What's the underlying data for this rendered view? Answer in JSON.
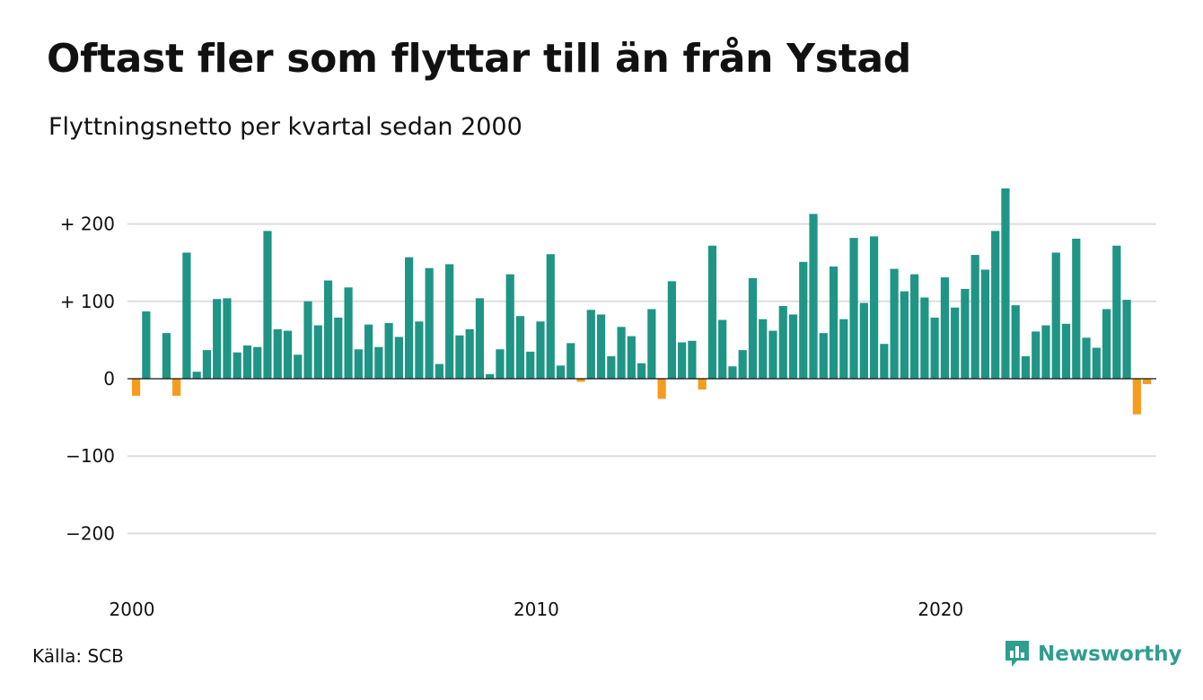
{
  "header": {
    "title": "Oftast fler som flyttar till än från Ystad",
    "subtitle": "Flyttningsnetto per kvartal sedan 2000"
  },
  "footer": {
    "source": "Källa: SCB",
    "brand": "Newsworthy",
    "brand_icon": "newsworthy-logo-icon"
  },
  "colors": {
    "positive": "#1f9585",
    "negative": "#f59c1c",
    "grid": "#dddddd",
    "zero_line": "#111111",
    "brand": "#2f9e8f"
  },
  "chart_data": {
    "type": "bar",
    "x_start": "2000 Q1",
    "interval": "quarter",
    "ylim": [
      -250,
      250
    ],
    "yticks": [
      {
        "value": 200,
        "label": "+ 200"
      },
      {
        "value": 100,
        "label": "+ 100"
      },
      {
        "value": 0,
        "label": "0"
      },
      {
        "value": -100,
        "label": "−100"
      },
      {
        "value": -200,
        "label": "−200"
      }
    ],
    "xticks": [
      {
        "index": 0,
        "label": "2000"
      },
      {
        "index": 40,
        "label": "2010"
      },
      {
        "index": 80,
        "label": "2020"
      }
    ],
    "grid": true,
    "values": [
      -22,
      87,
      0,
      59,
      -22,
      163,
      9,
      37,
      103,
      104,
      34,
      43,
      41,
      191,
      64,
      62,
      31,
      100,
      69,
      127,
      79,
      118,
      38,
      70,
      41,
      72,
      54,
      157,
      74,
      143,
      19,
      148,
      56,
      64,
      104,
      6,
      38,
      135,
      81,
      35,
      74,
      161,
      17,
      46,
      -4,
      89,
      83,
      29,
      67,
      55,
      20,
      90,
      -26,
      126,
      47,
      49,
      -14,
      172,
      76,
      16,
      37,
      130,
      77,
      62,
      94,
      83,
      151,
      213,
      59,
      145,
      77,
      182,
      98,
      184,
      45,
      142,
      113,
      135,
      105,
      79,
      131,
      92,
      116,
      160,
      141,
      191,
      246,
      95,
      29,
      61,
      69,
      163,
      71,
      181,
      53,
      40,
      90,
      172,
      102,
      -46,
      -7
    ]
  }
}
